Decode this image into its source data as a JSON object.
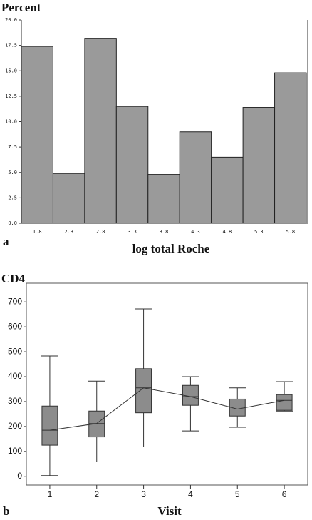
{
  "chart_data": [
    {
      "type": "bar",
      "title": "Percent",
      "panel": "a",
      "x_label": "log total Roche",
      "categories": [
        "1.8",
        "2.3",
        "2.8",
        "3.3",
        "3.8",
        "4.3",
        "4.8",
        "5.3",
        "5.8"
      ],
      "values": [
        17.4,
        4.9,
        18.2,
        11.5,
        4.8,
        9.0,
        6.5,
        11.4,
        14.8
      ],
      "color": "#9a9a9a",
      "ylim": [
        0,
        20
      ],
      "yticks": [
        {
          "value": 0,
          "label": "0.0"
        },
        {
          "value": 2.5,
          "label": "2.5"
        },
        {
          "value": 5,
          "label": "5.0"
        },
        {
          "value": 7.5,
          "label": "7.5"
        },
        {
          "value": 10,
          "label": "10.0"
        },
        {
          "value": 12.5,
          "label": "12.5"
        },
        {
          "value": 15,
          "label": "15.0"
        },
        {
          "value": 17.5,
          "label": "17.5"
        },
        {
          "value": 20,
          "label": "20.0"
        }
      ]
    },
    {
      "type": "box",
      "title": "CD4",
      "panel": "b",
      "x_label": "Visit",
      "categories": [
        "1",
        "2",
        "3",
        "4",
        "5",
        "6"
      ],
      "min": [
        3,
        58,
        118,
        182,
        197,
        262
      ],
      "q1": [
        125,
        158,
        255,
        285,
        242,
        265
      ],
      "median": [
        185,
        212,
        355,
        320,
        270,
        305
      ],
      "q3": [
        282,
        262,
        432,
        365,
        310,
        328
      ],
      "max": [
        483,
        382,
        672,
        400,
        355,
        380
      ],
      "color": "#8c8c8c",
      "ylim": [
        -35,
        775
      ],
      "yticks": [
        0,
        100,
        200,
        300,
        400,
        500,
        600,
        700
      ]
    }
  ]
}
